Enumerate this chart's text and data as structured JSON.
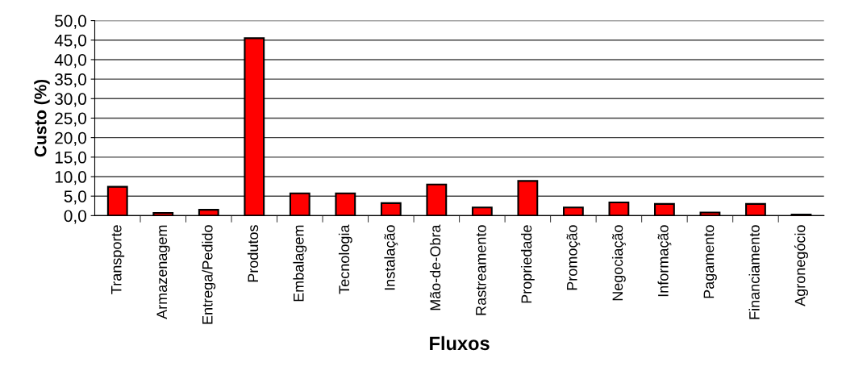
{
  "chart_data": {
    "type": "bar",
    "xlabel": "Fluxos",
    "ylabel": "Custo (%)",
    "categories": [
      "Transporte",
      "Armazenagem",
      "Entrega/Pedido",
      "Produtos",
      "Embalagem",
      "Tecnologia",
      "Instalação",
      "Mão-de-Obra",
      "Rastreamento",
      "Propriedade",
      "Promoção",
      "Negociação",
      "Informação",
      "Pagamento",
      "Financiamento",
      "Agronegócio"
    ],
    "values": [
      7.4,
      0.7,
      1.5,
      45.5,
      5.7,
      5.7,
      3.2,
      8.0,
      2.1,
      8.9,
      2.1,
      3.4,
      3.0,
      0.8,
      3.0,
      0.3
    ],
    "color": "#ff0000",
    "ylim": [
      0,
      50
    ],
    "yticks": [
      {
        "value": 0,
        "label": "0,0"
      },
      {
        "value": 5,
        "label": "5,0"
      },
      {
        "value": 10,
        "label": "10,0"
      },
      {
        "value": 15,
        "label": "15,0"
      },
      {
        "value": 20,
        "label": "20,0"
      },
      {
        "value": 25,
        "label": "25,0"
      },
      {
        "value": 30,
        "label": "30,0"
      },
      {
        "value": 35,
        "label": "35,0"
      },
      {
        "value": 40,
        "label": "40,0"
      },
      {
        "value": 45,
        "label": "45,0"
      },
      {
        "value": 50,
        "label": "50,0"
      }
    ],
    "grid": "y"
  }
}
